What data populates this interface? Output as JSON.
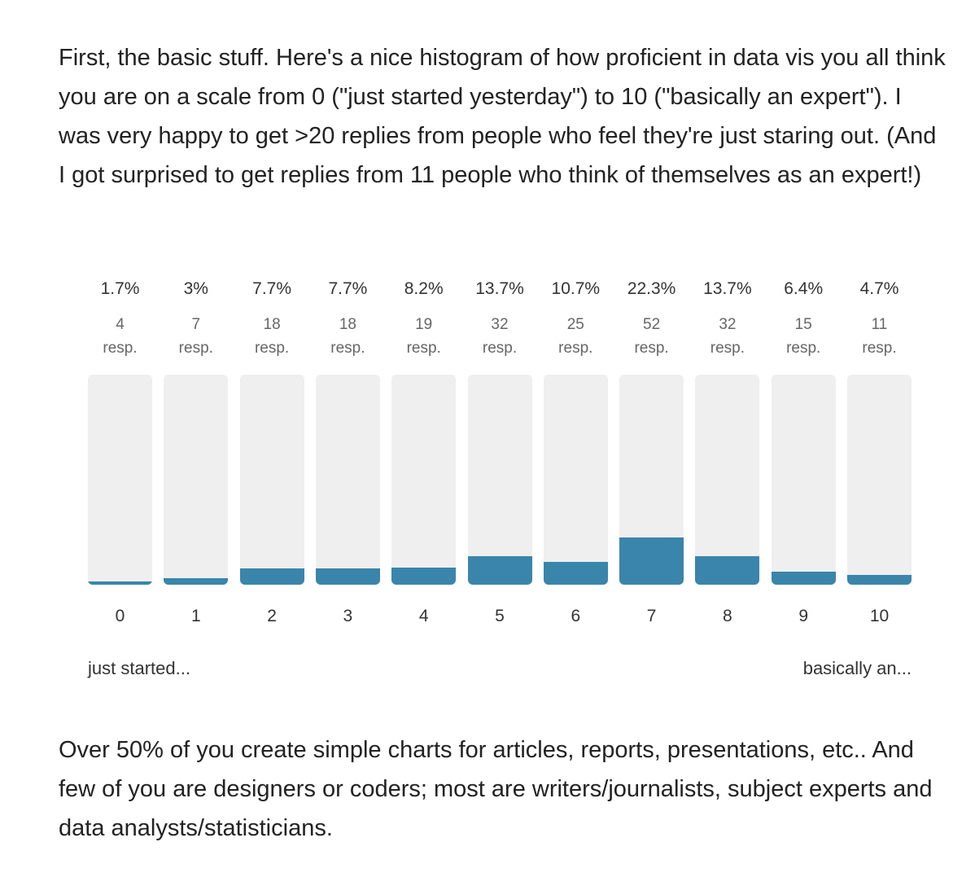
{
  "intro_text": "First, the basic stuff. Here's a nice histogram of how proficient in data vis you all think you are on a scale from 0 (\"just started yesterday\") to 10 (\"basically an expert\"). I was very happy to get >20 replies from people who feel they're just staring out. (And I got surprised to get replies from 11 people who think of themselves as an expert!)",
  "outro_text": "Over 50% of you create simple charts for articles, reports, presentations, etc.. And few of you are designers or coders; most are writers/journalists, subject experts and data analysts/statisticians.",
  "chart_data": {
    "type": "bar",
    "categories": [
      "0",
      "1",
      "2",
      "3",
      "4",
      "5",
      "6",
      "7",
      "8",
      "9",
      "10"
    ],
    "values": [
      4,
      7,
      18,
      18,
      19,
      32,
      25,
      52,
      32,
      15,
      11
    ],
    "percent_labels": [
      "1.7%",
      "3%",
      "7.7%",
      "7.7%",
      "8.2%",
      "13.7%",
      "10.7%",
      "22.3%",
      "13.7%",
      "6.4%",
      "4.7%"
    ],
    "percents": [
      1.7,
      3,
      7.7,
      7.7,
      8.2,
      13.7,
      10.7,
      22.3,
      13.7,
      6.4,
      4.7
    ],
    "count_unit": "resp.",
    "ylim": [
      0,
      100
    ],
    "low_label": "just started...",
    "high_label": "basically an...",
    "bar_color": "#3a85ab",
    "track_color": "#efefef"
  }
}
